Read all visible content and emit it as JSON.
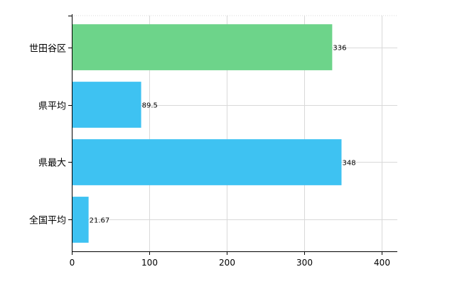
{
  "chart_data": {
    "type": "bar",
    "orientation": "horizontal",
    "categories": [
      "世田谷区",
      "県平均",
      "県最大",
      "全国平均"
    ],
    "values": [
      336,
      89.5,
      348,
      21.67
    ],
    "value_labels": [
      "336",
      "89.5",
      "348",
      "21.67"
    ],
    "colors": [
      "#6dd48a",
      "#3ec2f2",
      "#3ec2f2",
      "#3ec2f2"
    ],
    "xlim": [
      0,
      420
    ],
    "xticks": [
      0,
      100,
      200,
      300,
      400
    ],
    "xtick_labels": [
      "0",
      "100",
      "200",
      "300",
      "400"
    ],
    "grid": true,
    "title": "",
    "xlabel": "",
    "ylabel": ""
  },
  "colors": {
    "grid": "#d9d9d9",
    "axis": "#000000"
  }
}
